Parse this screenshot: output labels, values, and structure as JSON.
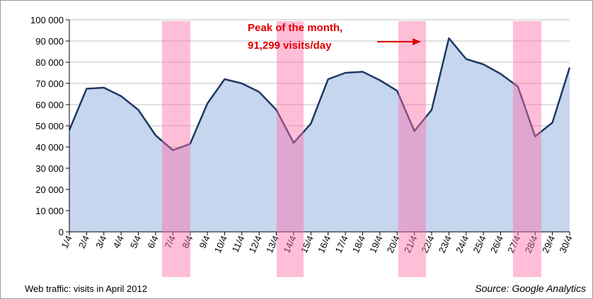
{
  "chart_data": {
    "type": "area",
    "categories": [
      "1/4",
      "2/4",
      "3/4",
      "4/4",
      "5/4",
      "6/4",
      "7/4",
      "8/4",
      "9/4",
      "10/4",
      "11/4",
      "12/4",
      "13/4",
      "14/4",
      "15/4",
      "16/4",
      "17/4",
      "18/4",
      "19/4",
      "20/4",
      "21/4",
      "22/4",
      "23/4",
      "24/4",
      "25/4",
      "26/4",
      "27/4",
      "28/4",
      "29/4",
      "30/4"
    ],
    "series": [
      {
        "name": "visits",
        "color": "#1f3864",
        "values": [
          48000,
          67500,
          68000,
          64000,
          57500,
          45500,
          38500,
          41500,
          60500,
          72000,
          70000,
          66000,
          57500,
          42000,
          51000,
          72000,
          75000,
          75500,
          71500,
          66500,
          47500,
          57500,
          91299,
          81500,
          79000,
          74500,
          68500,
          45000,
          51500,
          77500
        ]
      }
    ],
    "fill_color": "#c5d6ee",
    "ylim": [
      0,
      100000
    ],
    "yticks": [
      0,
      {
        "value": 10000,
        "label": "10 000"
      },
      {
        "value": 20000,
        "label": "20 000"
      },
      {
        "value": 30000,
        "label": "30 000"
      },
      {
        "value": 40000,
        "label": "40 000"
      },
      {
        "value": 50000,
        "label": "50 000"
      },
      {
        "value": 60000,
        "label": "60 000"
      },
      {
        "value": 70000,
        "label": "70 000"
      },
      {
        "value": 80000,
        "label": "80 000"
      },
      {
        "value": 90000,
        "label": "90 000"
      },
      {
        "value": 100000,
        "label": "100 000"
      }
    ],
    "grid": true,
    "annotation": [
      "Peak of the month,",
      "91,299 visits/day"
    ],
    "footer_left": "Web traffic: visits in April 2012",
    "footer_right": "Source: Google Analytics"
  }
}
